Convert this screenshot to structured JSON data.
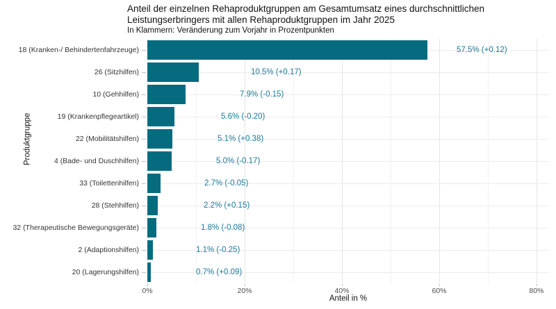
{
  "chart_data": {
    "type": "bar",
    "orientation": "horizontal",
    "title": "Anteil der einzelnen Rehaproduktgruppen am Gesamtumsatz eines durchschnittlichen Leistungserbringers mit allen Rehaproduktgruppen im Jahr 2025",
    "subtitle": "In Klammern: Veränderung zum Vorjahr in Prozentpunkten",
    "xlabel": "Anteil in %",
    "ylabel": "Produktgruppe",
    "categories": [
      "18 (Kranken-/ Behindertenfahrzeuge)",
      "26 (Sitzhilfen)",
      "10 (Gehhilfen)",
      "19 (Krankenpflegeartikel)",
      "22 (Mobilitätshilfen)",
      "4 (Bade- und Duschhilfen)",
      "33 (Toilettenhilfen)",
      "28 (Stehhilfen)",
      "32 (Therapeutische Bewegungsgeräte)",
      "2 (Adaptionshilfen)",
      "20 (Lagerungshilfen)"
    ],
    "values": [
      57.5,
      10.5,
      7.9,
      5.6,
      5.1,
      5.0,
      2.7,
      2.2,
      1.8,
      1.1,
      0.7
    ],
    "deltas_vs_prev_year_pp": [
      0.12,
      0.17,
      -0.15,
      -0.2,
      0.38,
      -0.17,
      -0.05,
      0.15,
      -0.08,
      -0.25,
      0.09
    ],
    "value_labels": [
      "57.5% (+0.12)",
      "10.5% (+0.17)",
      "7.9% (-0.15)",
      "5.6% (-0.20)",
      "5.1% (+0.38)",
      "5.0% (-0.17)",
      "2.7% (-0.05)",
      "2.2% (+0.15)",
      "1.8% (-0.08)",
      "1.1% (-0.25)",
      "0.7% (+0.09)"
    ],
    "x_ticks": {
      "labels": [
        "0%",
        "20%",
        "40%",
        "60%",
        "80%"
      ],
      "values": [
        0,
        20,
        40,
        60,
        80
      ]
    },
    "xlim": [
      0,
      82.5
    ],
    "grid": "on",
    "legend": "none",
    "bar_color": "#076b80",
    "value_label_color": "#1d7a99"
  }
}
